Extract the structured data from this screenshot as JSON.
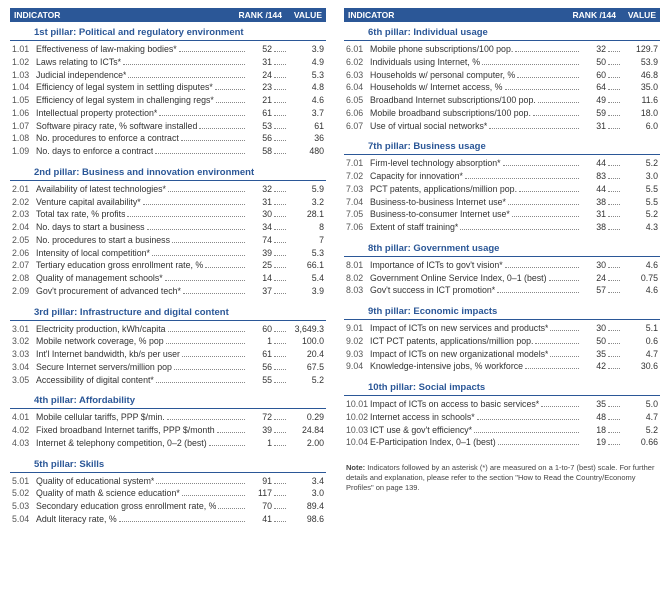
{
  "header": {
    "indicator": "INDICATOR",
    "rank": "RANK /144",
    "value": "VALUE"
  },
  "note_label": "Note:",
  "note_text": "Indicators followed by an asterisk (*) are measured on a 1-to-7 (best) scale. For further details and explanation, please refer to the section \"How to Read the Country/Economy Profiles\" on page 139.",
  "left": [
    {
      "title": "1st pillar: Political and regulatory environment",
      "rows": [
        {
          "n": "1.01",
          "l": "Effectiveness of law-making bodies*",
          "r": "52",
          "v": "3.9"
        },
        {
          "n": "1.02",
          "l": "Laws relating to ICTs*",
          "r": "31",
          "v": "4.9"
        },
        {
          "n": "1.03",
          "l": "Judicial independence*",
          "r": "24",
          "v": "5.3"
        },
        {
          "n": "1.04",
          "l": "Efficiency of legal system in settling disputes*",
          "r": "23",
          "v": "4.8"
        },
        {
          "n": "1.05",
          "l": "Efficiency of legal system in challenging regs*",
          "r": "21",
          "v": "4.6"
        },
        {
          "n": "1.06",
          "l": "Intellectual property protection*",
          "r": "61",
          "v": "3.7"
        },
        {
          "n": "1.07",
          "l": "Software piracy rate, % software installed",
          "r": "53",
          "v": "61"
        },
        {
          "n": "1.08",
          "l": "No. procedures to enforce a contract",
          "r": "56",
          "v": "36"
        },
        {
          "n": "1.09",
          "l": "No. days to enforce a contract",
          "r": "58",
          "v": "480"
        }
      ]
    },
    {
      "title": "2nd pillar: Business and innovation environment",
      "rows": [
        {
          "n": "2.01",
          "l": "Availability of latest technologies*",
          "r": "32",
          "v": "5.9"
        },
        {
          "n": "2.02",
          "l": "Venture capital availability*",
          "r": "31",
          "v": "3.2"
        },
        {
          "n": "2.03",
          "l": "Total tax rate, % profits",
          "r": "30",
          "v": "28.1"
        },
        {
          "n": "2.04",
          "l": "No. days to start a business",
          "r": "34",
          "v": "8"
        },
        {
          "n": "2.05",
          "l": "No. procedures to start a business",
          "r": "74",
          "v": "7"
        },
        {
          "n": "2.06",
          "l": "Intensity of local competition*",
          "r": "39",
          "v": "5.3"
        },
        {
          "n": "2.07",
          "l": "Tertiary education gross enrollment rate, %",
          "r": "25",
          "v": "66.1"
        },
        {
          "n": "2.08",
          "l": "Quality of management schools*",
          "r": "14",
          "v": "5.4"
        },
        {
          "n": "2.09",
          "l": "Gov't procurement of advanced tech*",
          "r": "37",
          "v": "3.9"
        }
      ]
    },
    {
      "title": "3rd pillar: Infrastructure and digital content",
      "rows": [
        {
          "n": "3.01",
          "l": "Electricity production, kWh/capita",
          "r": "60",
          "v": "3,649.3"
        },
        {
          "n": "3.02",
          "l": "Mobile network coverage, % pop",
          "r": "1",
          "v": "100.0"
        },
        {
          "n": "3.03",
          "l": "Int'l Internet bandwidth, kb/s per user",
          "r": "61",
          "v": "20.4"
        },
        {
          "n": "3.04",
          "l": "Secure Internet servers/million pop",
          "r": "56",
          "v": "67.5"
        },
        {
          "n": "3.05",
          "l": "Accessibility of digital content*",
          "r": "55",
          "v": "5.2"
        }
      ]
    },
    {
      "title": "4th pillar: Affordability",
      "rows": [
        {
          "n": "4.01",
          "l": "Mobile cellular tariffs, PPP $/min.",
          "r": "72",
          "v": "0.29"
        },
        {
          "n": "4.02",
          "l": "Fixed broadband Internet tariffs, PPP $/month",
          "r": "39",
          "v": "24.84"
        },
        {
          "n": "4.03",
          "l": "Internet & telephony competition, 0–2 (best)",
          "r": "1",
          "v": "2.00"
        }
      ]
    },
    {
      "title": "5th pillar: Skills",
      "rows": [
        {
          "n": "5.01",
          "l": "Quality of educational system*",
          "r": "91",
          "v": "3.4"
        },
        {
          "n": "5.02",
          "l": "Quality of math & science education*",
          "r": "117",
          "v": "3.0"
        },
        {
          "n": "5.03",
          "l": "Secondary education gross enrollment rate, %",
          "r": "70",
          "v": "89.4"
        },
        {
          "n": "5.04",
          "l": "Adult literacy rate, %",
          "r": "41",
          "v": "98.6"
        }
      ]
    }
  ],
  "right": [
    {
      "title": "6th pillar: Individual usage",
      "rows": [
        {
          "n": "6.01",
          "l": "Mobile phone subscriptions/100 pop.",
          "r": "32",
          "v": "129.7"
        },
        {
          "n": "6.02",
          "l": "Individuals using Internet, %",
          "r": "50",
          "v": "53.9"
        },
        {
          "n": "6.03",
          "l": "Households w/ personal computer, %",
          "r": "60",
          "v": "46.8"
        },
        {
          "n": "6.04",
          "l": "Households w/ Internet access, %",
          "r": "64",
          "v": "35.0"
        },
        {
          "n": "6.05",
          "l": "Broadband Internet subscriptions/100 pop.",
          "r": "49",
          "v": "11.6"
        },
        {
          "n": "6.06",
          "l": "Mobile broadband subscriptions/100 pop.",
          "r": "59",
          "v": "18.0"
        },
        {
          "n": "6.07",
          "l": "Use of virtual social networks*",
          "r": "31",
          "v": "6.0"
        }
      ]
    },
    {
      "title": "7th pillar: Business usage",
      "rows": [
        {
          "n": "7.01",
          "l": "Firm-level technology absorption*",
          "r": "44",
          "v": "5.2"
        },
        {
          "n": "7.02",
          "l": "Capacity for innovation*",
          "r": "83",
          "v": "3.0"
        },
        {
          "n": "7.03",
          "l": "PCT patents, applications/million pop.",
          "r": "44",
          "v": "5.5"
        },
        {
          "n": "7.04",
          "l": "Business-to-business Internet use*",
          "r": "38",
          "v": "5.5"
        },
        {
          "n": "7.05",
          "l": "Business-to-consumer Internet use*",
          "r": "31",
          "v": "5.2"
        },
        {
          "n": "7.06",
          "l": "Extent of staff training*",
          "r": "38",
          "v": "4.3"
        }
      ]
    },
    {
      "title": "8th pillar: Government usage",
      "rows": [
        {
          "n": "8.01",
          "l": "Importance of ICTs to gov't vision*",
          "r": "30",
          "v": "4.6"
        },
        {
          "n": "8.02",
          "l": "Government Online Service Index, 0–1 (best)",
          "r": "24",
          "v": "0.75"
        },
        {
          "n": "8.03",
          "l": "Gov't success in ICT promotion*",
          "r": "57",
          "v": "4.6"
        }
      ]
    },
    {
      "title": "9th pillar: Economic impacts",
      "rows": [
        {
          "n": "9.01",
          "l": "Impact of ICTs on new services and products*",
          "r": "30",
          "v": "5.1"
        },
        {
          "n": "9.02",
          "l": "ICT PCT patents, applications/million pop.",
          "r": "50",
          "v": "0.6"
        },
        {
          "n": "9.03",
          "l": "Impact of ICTs on new organizational models*",
          "r": "35",
          "v": "4.7"
        },
        {
          "n": "9.04",
          "l": "Knowledge-intensive jobs, % workforce",
          "r": "42",
          "v": "30.6"
        }
      ]
    },
    {
      "title": "10th pillar: Social impacts",
      "rows": [
        {
          "n": "10.01",
          "l": "Impact of ICTs on access to basic services*",
          "r": "35",
          "v": "5.0"
        },
        {
          "n": "10.02",
          "l": "Internet access in schools*",
          "r": "48",
          "v": "4.7"
        },
        {
          "n": "10.03",
          "l": "ICT use & gov't efficiency*",
          "r": "18",
          "v": "5.2"
        },
        {
          "n": "10.04",
          "l": "E-Participation Index, 0–1 (best)",
          "r": "19",
          "v": "0.66"
        }
      ]
    }
  ]
}
